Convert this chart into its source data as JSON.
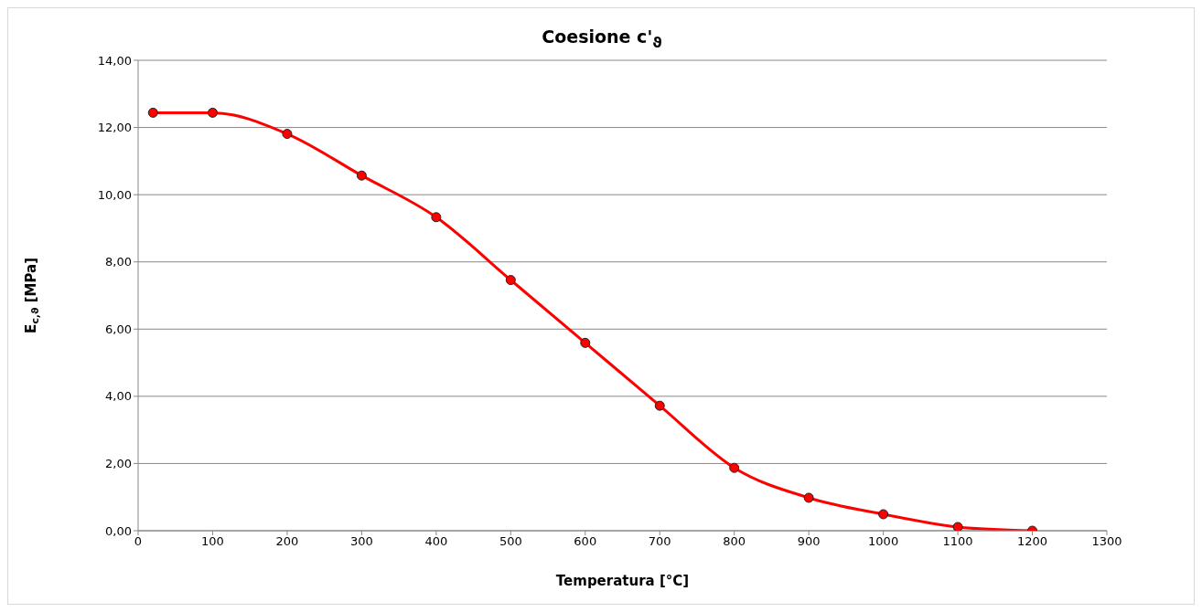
{
  "chart_data": {
    "type": "line",
    "title": "Coesione c'$_{ϑ}$",
    "xlabel": "Temperatura [°C]",
    "ylabel": "E$_{c,ϑ}$ [MPa]",
    "x": [
      20,
      100,
      200,
      300,
      400,
      500,
      600,
      700,
      800,
      900,
      1000,
      1100,
      1200
    ],
    "series": [
      {
        "color": "#ff0000",
        "values": [
          12.44,
          12.44,
          11.81,
          10.57,
          9.33,
          7.46,
          5.59,
          3.72,
          1.87,
          0.98,
          0.49,
          0.11,
          0
        ]
      }
    ],
    "xlim": [
      0,
      1300
    ],
    "xticks": [
      0,
      100,
      200,
      300,
      400,
      500,
      600,
      700,
      800,
      900,
      1000,
      1100,
      1200,
      1300
    ],
    "ylim": [
      0,
      14
    ],
    "yticks": [
      {
        "value": 0,
        "label": "0,00"
      },
      {
        "value": 2,
        "label": "2,00"
      },
      {
        "value": 4,
        "label": "4,00"
      },
      {
        "value": 6,
        "label": "6,00"
      },
      {
        "value": 8,
        "label": "8,00"
      },
      {
        "value": 10,
        "label": "10,00"
      },
      {
        "value": 12,
        "label": "12,00"
      },
      {
        "value": 14,
        "label": "14,00"
      }
    ],
    "grid": "y",
    "marker": "circle",
    "line_style": "solid"
  }
}
